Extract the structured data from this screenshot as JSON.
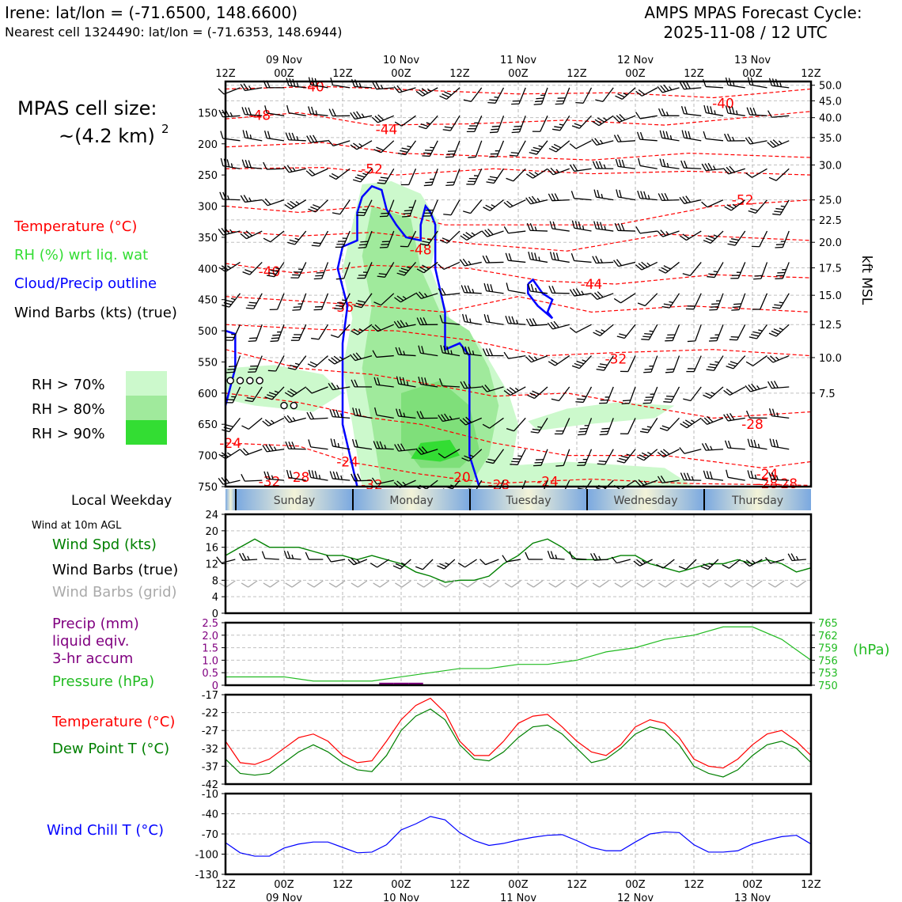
{
  "header": {
    "left_title": "Irene: lat/lon = (-71.6500, 148.6600)",
    "left_subtitle": "Nearest cell 1324490: lat/lon = (-71.6353, 148.6944)",
    "right_title_1": "AMPS MPAS Forecast Cycle:",
    "right_title_2": "2025-11-08 / 12 UTC"
  },
  "legend": {
    "cell_size_1": "MPAS cell size:",
    "cell_size_2": "~(4.2 km)",
    "cell_size_exp": "2",
    "temperature": "Temperature (°C)",
    "rh": "RH (%) wrt liq. wat",
    "cloud": "Cloud/Precip outline",
    "barbs": "Wind Barbs (kts) (true)",
    "rh70": "RH > 70%",
    "rh80": "RH > 80%",
    "rh90": "RH > 90%",
    "local_weekday": "Local Weekday",
    "wind10m": "Wind at 10m AGL",
    "wind_spd": "Wind Spd (kts)",
    "barbs_true": "Wind Barbs (true)",
    "barbs_grid": "Wind Barbs (grid)",
    "precip_1": "Precip (mm)",
    "precip_2": "liquid eqiv.",
    "precip_3": "3-hr accum",
    "pressure": "Pressure (hPa)",
    "temp2": "Temperature (°C)",
    "dewpoint": "Dew Point T (°C)",
    "windchill": "Wind Chill T (°C)",
    "kft": "kft MSL",
    "hpa": "(hPa)"
  },
  "colors": {
    "temperature": "#ff0000",
    "rh": "#33dd33",
    "cloud": "#0000ff",
    "wind": "#000000",
    "grid_barbs": "#aaaaaa",
    "speed": "#008000",
    "precip": "#800080",
    "pressure": "#22bb22",
    "windchill": "#0000ff",
    "rh70": "#ccf9cc",
    "rh80": "#a0ea9c",
    "rh90": "#33dd33"
  },
  "time_axis": {
    "ticks": [
      "12Z",
      "00Z",
      "12Z",
      "00Z",
      "12Z",
      "00Z",
      "12Z",
      "00Z",
      "12Z",
      "00Z",
      "12Z"
    ],
    "dates": [
      "09 Nov",
      "10 Nov",
      "11 Nov",
      "12 Nov",
      "13 Nov"
    ]
  },
  "weekdays": [
    "Sunday",
    "Monday",
    "Tuesday",
    "Wednesday",
    "Thursday"
  ],
  "chart_data": [
    {
      "type": "heatmap",
      "panel": "time-height cross-section",
      "x_hours": [
        0,
        120
      ],
      "y_pressure": [
        100,
        750
      ],
      "yticks_left": [
        "150",
        "200",
        "250",
        "300",
        "350",
        "400",
        "450",
        "500",
        "550",
        "600",
        "650",
        "700",
        "750"
      ],
      "yticks_right": [
        "50.0",
        "45.0",
        "40.0",
        "35.0",
        "30.0",
        "25.0",
        "22.5",
        "20.0",
        "17.5",
        "15.0",
        "12.5",
        "10.0",
        "7.5"
      ],
      "temperature_labels": [
        {
          "text": "-40",
          "t": 18,
          "p": 108
        },
        {
          "text": "-48",
          "t": 7,
          "p": 154
        },
        {
          "text": "-44",
          "t": 33,
          "p": 177
        },
        {
          "text": "-52",
          "t": 30,
          "p": 240
        },
        {
          "text": "-40",
          "t": 102,
          "p": 135
        },
        {
          "text": "-48",
          "t": 40,
          "p": 370
        },
        {
          "text": "-40",
          "t": 9,
          "p": 405
        },
        {
          "text": "-36",
          "t": 24,
          "p": 462
        },
        {
          "text": "-44",
          "t": 75,
          "p": 425
        },
        {
          "text": "-52",
          "t": 106,
          "p": 290
        },
        {
          "text": "-32",
          "t": 80,
          "p": 545
        },
        {
          "text": "-28",
          "t": 108,
          "p": 650
        },
        {
          "text": "-24",
          "t": 1,
          "p": 680
        },
        {
          "text": "-24",
          "t": 25,
          "p": 710
        },
        {
          "text": "-32",
          "t": 9,
          "p": 742
        },
        {
          "text": "-28",
          "t": 15,
          "p": 735
        },
        {
          "text": "-32",
          "t": 30,
          "p": 747
        },
        {
          "text": "-20",
          "t": 48,
          "p": 735
        },
        {
          "text": "-28",
          "t": 56,
          "p": 747
        },
        {
          "text": "-24",
          "t": 66,
          "p": 742
        },
        {
          "text": "-24",
          "t": 111,
          "p": 730
        },
        {
          "text": "-28",
          "t": 111,
          "p": 745
        },
        {
          "text": "-28",
          "t": 115,
          "p": 745
        }
      ]
    },
    {
      "type": "line",
      "panel": "wind speed 10m",
      "x_hours": [
        0,
        3,
        6,
        9,
        12,
        15,
        18,
        21,
        24,
        27,
        30,
        33,
        36,
        39,
        42,
        45,
        48,
        51,
        54,
        57,
        60,
        63,
        66,
        69,
        72,
        75,
        78,
        81,
        84,
        87,
        90,
        93,
        96,
        99,
        102,
        105,
        108,
        111,
        114,
        117,
        120
      ],
      "series": [
        {
          "values": [
            14,
            16,
            18,
            16,
            16,
            16,
            15,
            14,
            14,
            13,
            14,
            13,
            12,
            10,
            9,
            7.5,
            8,
            8,
            9,
            12,
            14,
            17,
            18,
            16,
            13,
            13,
            13,
            14,
            14,
            12,
            11,
            10,
            11,
            12,
            12,
            13,
            12,
            13,
            12,
            10,
            11
          ]
        }
      ],
      "yticks": [
        "0",
        "4",
        "8",
        "12",
        "16",
        "20",
        "24"
      ],
      "ylim": [
        0,
        24
      ]
    },
    {
      "type": "line",
      "panel": "precip and pressure",
      "x_hours": [
        0,
        6,
        12,
        18,
        24,
        30,
        36,
        42,
        48,
        54,
        60,
        66,
        72,
        78,
        84,
        90,
        96,
        102,
        108,
        114,
        120
      ],
      "series": [
        {
          "values": [
            752,
            752,
            752,
            751,
            751,
            751,
            752,
            753,
            754,
            754,
            755,
            755,
            756,
            758,
            759,
            761,
            762,
            764,
            764,
            761,
            756
          ]
        }
      ],
      "precip_bars": [
        {
          "t": 33,
          "mm": 0.1
        },
        {
          "t": 36,
          "mm": 0.1
        },
        {
          "t": 39,
          "mm": 0.1
        }
      ],
      "yticks_left": [
        "0",
        "0.5",
        "1.0",
        "1.5",
        "2.0",
        "2.5"
      ],
      "yticks_right": [
        "750",
        "753",
        "756",
        "759",
        "762",
        "765"
      ],
      "ylim_left": [
        0,
        2.5
      ],
      "ylim_right": [
        750,
        765
      ]
    },
    {
      "type": "line",
      "panel": "temperature and dew point",
      "x_hours": [
        0,
        3,
        6,
        9,
        12,
        15,
        18,
        21,
        24,
        27,
        30,
        33,
        36,
        39,
        42,
        45,
        48,
        51,
        54,
        57,
        60,
        63,
        66,
        69,
        72,
        75,
        78,
        81,
        84,
        87,
        90,
        93,
        96,
        99,
        102,
        105,
        108,
        111,
        114,
        117,
        120
      ],
      "series": [
        {
          "values": [
            -30,
            -36,
            -36.5,
            -35,
            -32,
            -29,
            -28,
            -30,
            -34,
            -36,
            -35.5,
            -30,
            -24,
            -20,
            -18,
            -22,
            -30,
            -34,
            -34,
            -30,
            -25,
            -23,
            -22.5,
            -26,
            -30,
            -33,
            -34,
            -31,
            -26,
            -24,
            -25,
            -29,
            -35,
            -37,
            -37.5,
            -35,
            -31,
            -28,
            -27,
            -30,
            -34
          ]
        },
        {
          "values": [
            -35,
            -39,
            -39.5,
            -39,
            -36,
            -33,
            -31,
            -33,
            -36,
            -38,
            -38.5,
            -34,
            -27,
            -23,
            -21,
            -24,
            -31,
            -35,
            -35.5,
            -33,
            -29,
            -26,
            -25.5,
            -28,
            -32,
            -36,
            -35,
            -32,
            -28,
            -26,
            -27,
            -31,
            -37,
            -39,
            -40,
            -38,
            -34,
            -31,
            -30,
            -32,
            -36
          ]
        }
      ],
      "yticks": [
        "-42",
        "-37",
        "-32",
        "-27",
        "-22",
        "-17"
      ],
      "ylim": [
        -42,
        -17
      ]
    },
    {
      "type": "line",
      "panel": "wind chill",
      "x_hours": [
        0,
        3,
        6,
        9,
        12,
        15,
        18,
        21,
        24,
        27,
        30,
        33,
        36,
        39,
        42,
        45,
        48,
        51,
        54,
        57,
        60,
        63,
        66,
        69,
        72,
        75,
        78,
        81,
        84,
        87,
        90,
        93,
        96,
        99,
        102,
        105,
        108,
        111,
        114,
        117,
        120
      ],
      "series": [
        {
          "values": [
            -83,
            -98,
            -103,
            -103,
            -91,
            -85,
            -82,
            -82,
            -90,
            -98,
            -97,
            -86,
            -64,
            -55,
            -44,
            -49,
            -68,
            -80,
            -87,
            -84,
            -79,
            -75,
            -72,
            -71,
            -80,
            -90,
            -95,
            -95,
            -82,
            -70,
            -67,
            -68,
            -86,
            -97,
            -97,
            -95,
            -85,
            -79,
            -74,
            -72,
            -85
          ]
        }
      ],
      "yticks": [
        "-130",
        "-100",
        "-70",
        "-40",
        "-10"
      ],
      "ylim": [
        -130,
        -10
      ]
    }
  ]
}
